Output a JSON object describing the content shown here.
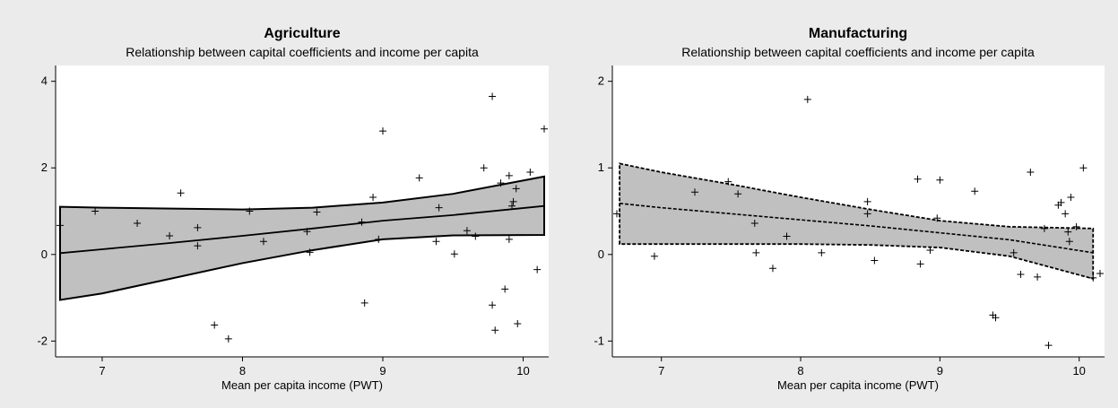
{
  "chart_data": [
    {
      "type": "scatter",
      "title": "Agriculture",
      "subtitle": "Relationship between capital coefficients and income per capita",
      "xlabel": "Mean per capita income (PWT)",
      "ylabel": "",
      "xlim": [
        6.7,
        10.15
      ],
      "ylim": [
        -2.2,
        4.2
      ],
      "x_ticks": [
        7,
        8,
        9,
        10
      ],
      "y_ticks": [
        -2,
        0,
        2,
        4
      ],
      "band": {
        "x": [
          6.7,
          7.0,
          7.5,
          8.0,
          8.5,
          9.0,
          9.5,
          10.15
        ],
        "fit": [
          0.03,
          0.12,
          0.27,
          0.43,
          0.6,
          0.78,
          0.91,
          1.12
        ],
        "upper": [
          1.1,
          1.08,
          1.06,
          1.04,
          1.08,
          1.2,
          1.4,
          1.8
        ],
        "lower": [
          -1.05,
          -0.9,
          -0.55,
          -0.2,
          0.1,
          0.35,
          0.44,
          0.45
        ]
      },
      "points": [
        [
          6.7,
          0.67
        ],
        [
          6.95,
          1.0
        ],
        [
          7.25,
          0.72
        ],
        [
          7.48,
          0.43
        ],
        [
          7.56,
          1.42
        ],
        [
          7.68,
          0.62
        ],
        [
          7.68,
          0.2
        ],
        [
          7.8,
          -1.63
        ],
        [
          7.9,
          -1.95
        ],
        [
          8.05,
          1.0
        ],
        [
          8.15,
          0.3
        ],
        [
          8.46,
          0.53
        ],
        [
          8.48,
          0.05
        ],
        [
          8.53,
          0.98
        ],
        [
          8.85,
          0.75
        ],
        [
          8.87,
          -1.12
        ],
        [
          8.93,
          1.32
        ],
        [
          8.97,
          0.35
        ],
        [
          9.0,
          2.85
        ],
        [
          9.26,
          1.77
        ],
        [
          9.38,
          0.3
        ],
        [
          9.4,
          1.08
        ],
        [
          9.51,
          0.01
        ],
        [
          9.6,
          0.55
        ],
        [
          9.66,
          0.42
        ],
        [
          9.72,
          2.0
        ],
        [
          9.78,
          3.65
        ],
        [
          9.78,
          -1.17
        ],
        [
          9.8,
          -1.75
        ],
        [
          9.84,
          1.65
        ],
        [
          9.87,
          -0.8
        ],
        [
          9.9,
          1.82
        ],
        [
          9.9,
          0.35
        ],
        [
          9.92,
          1.12
        ],
        [
          9.93,
          1.22
        ],
        [
          9.95,
          1.52
        ],
        [
          9.96,
          -1.6
        ],
        [
          10.05,
          1.9
        ],
        [
          10.1,
          -0.35
        ],
        [
          10.15,
          2.9
        ]
      ]
    },
    {
      "type": "scatter",
      "title": "Manufacturing",
      "subtitle": "Relationship between capital coefficients and income per capita",
      "xlabel": "Mean per capita income (PWT)",
      "ylabel": "",
      "xlim": [
        6.68,
        10.15
      ],
      "ylim": [
        -1.1,
        2.1
      ],
      "x_ticks": [
        7,
        8,
        9,
        10
      ],
      "y_ticks": [
        -1,
        0,
        1,
        2
      ],
      "band": {
        "x": [
          6.7,
          7.0,
          7.5,
          8.0,
          8.5,
          9.0,
          9.5,
          10.1
        ],
        "fit": [
          0.59,
          0.54,
          0.47,
          0.4,
          0.33,
          0.25,
          0.17,
          0.02
        ],
        "upper": [
          1.05,
          0.95,
          0.81,
          0.66,
          0.52,
          0.39,
          0.32,
          0.3
        ],
        "lower": [
          0.12,
          0.12,
          0.12,
          0.12,
          0.11,
          0.08,
          -0.02,
          -0.28
        ]
      },
      "points": [
        [
          6.68,
          0.47
        ],
        [
          6.95,
          -0.02
        ],
        [
          7.24,
          0.72
        ],
        [
          7.48,
          0.84
        ],
        [
          7.55,
          0.7
        ],
        [
          7.67,
          0.36
        ],
        [
          7.68,
          0.02
        ],
        [
          7.8,
          -0.16
        ],
        [
          7.9,
          0.21
        ],
        [
          8.05,
          1.79
        ],
        [
          8.15,
          0.02
        ],
        [
          8.48,
          0.61
        ],
        [
          8.48,
          0.47
        ],
        [
          8.53,
          -0.07
        ],
        [
          8.84,
          0.87
        ],
        [
          8.86,
          -0.11
        ],
        [
          8.93,
          0.05
        ],
        [
          8.98,
          0.42
        ],
        [
          9.0,
          0.86
        ],
        [
          9.25,
          0.73
        ],
        [
          9.38,
          -0.7
        ],
        [
          9.4,
          -0.73
        ],
        [
          9.53,
          0.02
        ],
        [
          9.58,
          -0.23
        ],
        [
          9.65,
          0.95
        ],
        [
          9.7,
          -0.26
        ],
        [
          9.75,
          0.3
        ],
        [
          9.78,
          -1.05
        ],
        [
          9.85,
          0.57
        ],
        [
          9.87,
          0.6
        ],
        [
          9.9,
          0.47
        ],
        [
          9.92,
          0.26
        ],
        [
          9.93,
          0.15
        ],
        [
          9.94,
          0.66
        ],
        [
          9.98,
          0.32
        ],
        [
          10.03,
          1.0
        ],
        [
          10.1,
          -0.27
        ],
        [
          10.15,
          -0.22
        ]
      ]
    }
  ]
}
